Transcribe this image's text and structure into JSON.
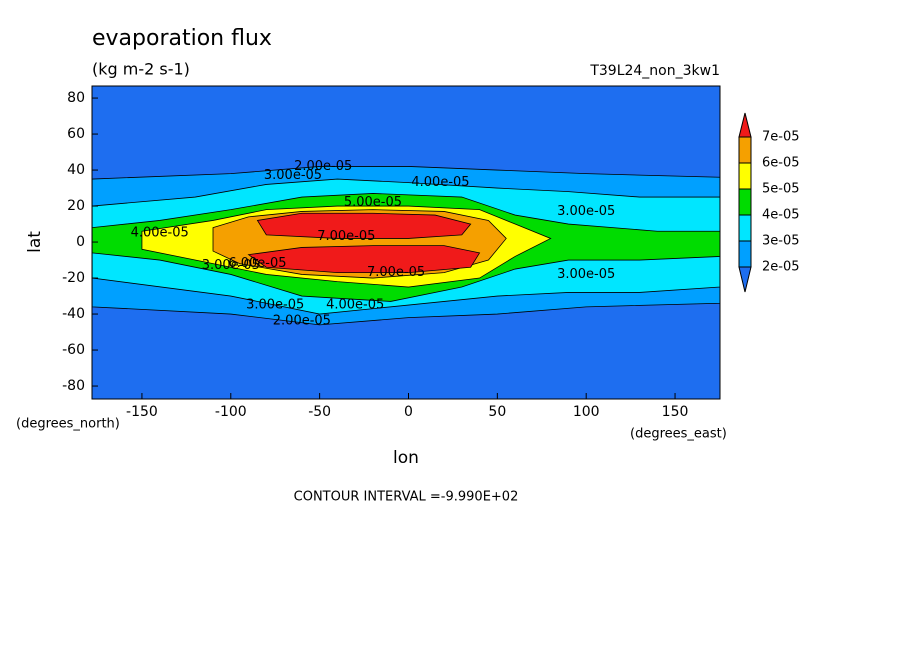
{
  "chart_data": {
    "type": "contour",
    "title": "evaporation flux",
    "subtitle": "(kg m-2 s-1)",
    "run_label": "T39L24_non_3kw1",
    "x_label": "lon",
    "y_label": "lat",
    "x_units": "(degrees_east)",
    "y_units": "(degrees_north)",
    "note": "CONTOUR INTERVAL =-9.990E+02",
    "xlim": [
      -178.1,
      175.3
    ],
    "ylim": [
      -87.2,
      86.7
    ],
    "xticks": [
      -150,
      -100,
      -50,
      0,
      50,
      100,
      150
    ],
    "yticks": [
      -80,
      -60,
      -40,
      -20,
      0,
      20,
      40,
      60,
      80
    ],
    "levels": [
      {
        "value": 2e-05,
        "label": "2e-05"
      },
      {
        "value": 3e-05,
        "label": "3e-05"
      },
      {
        "value": 4e-05,
        "label": "4e-05"
      },
      {
        "value": 5e-05,
        "label": "5e-05"
      },
      {
        "value": 6e-05,
        "label": "6e-05"
      },
      {
        "value": 7e-05,
        "label": "7e-05"
      }
    ],
    "colors": [
      "#1e6ef0",
      "#00a0ff",
      "#00e6ff",
      "#00dc00",
      "#ffff00",
      "#f5a000",
      "#f01a1a"
    ],
    "contour_labels": [
      {
        "label": "2.00e-05",
        "x": -48,
        "y": 42
      },
      {
        "label": "3.00e-05",
        "x": -65,
        "y": 37
      },
      {
        "label": "4.00e-05",
        "x": 18,
        "y": 33
      },
      {
        "label": "5.00e-05",
        "x": -20,
        "y": 22
      },
      {
        "label": "3.00e-05",
        "x": 100,
        "y": 17
      },
      {
        "label": "4.00e-05",
        "x": -140,
        "y": 5
      },
      {
        "label": "7.00e-05",
        "x": -35,
        "y": 3
      },
      {
        "label": "3.00e-05",
        "x": -100,
        "y": -13
      },
      {
        "label": "6.00e-05",
        "x": -85,
        "y": -12
      },
      {
        "label": "7.00e-05",
        "x": -7,
        "y": -17
      },
      {
        "label": "3.00e-05",
        "x": 100,
        "y": -18
      },
      {
        "label": "3.00e-05",
        "x": -75,
        "y": -35
      },
      {
        "label": "4.00e-05",
        "x": -30,
        "y": -35
      },
      {
        "label": "2.00e-05",
        "x": -60,
        "y": -44
      }
    ]
  }
}
